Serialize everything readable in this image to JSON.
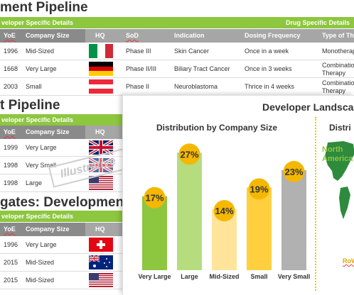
{
  "section1": {
    "title": "ment Pipeline",
    "bar_left": "veloper Specific Details",
    "bar_right": "Drug Specific Details",
    "headers": [
      "YoE",
      "Company Size",
      "HQ",
      "SoD",
      "Indication",
      "Dosing Frequency",
      "Type of Th"
    ],
    "rows": [
      {
        "yoe": "1996",
        "size": "Mid-Sized",
        "flag": "italy",
        "sod": "Phase III",
        "indication": "Skin Cancer",
        "dosing": "Once in a week",
        "type": "Monotherapy"
      },
      {
        "yoe": "1668",
        "size": "Very Large",
        "flag": "germany",
        "sod": "Phase II/III",
        "indication": "Biliary Tract Cancer",
        "dosing": "Once in 3 weeks",
        "type": "Combination Therapy"
      },
      {
        "yoe": "2003",
        "size": "Small",
        "flag": "austria",
        "sod": "Phase II",
        "indication": "Neuroblastoma",
        "dosing": "Thrice in 4 weeks",
        "type": "Combination Therapy"
      }
    ]
  },
  "section2": {
    "title": "t Pipeline",
    "bar_left": "veloper Specific Details",
    "headers": [
      "YoE",
      "Company Size",
      "HQ"
    ],
    "rows": [
      {
        "yoe": "1999",
        "size": "Very Large",
        "flag": "uk"
      },
      {
        "yoe": "1998",
        "size": "Very Small",
        "flag": "uk"
      },
      {
        "yoe": "1998",
        "size": "Large",
        "flag": "usa"
      }
    ]
  },
  "section3": {
    "title": "gates: Development P",
    "bar_left": "veloper Specific Details",
    "headers": [
      "YoE",
      "Company Size",
      "HQ"
    ],
    "rows": [
      {
        "yoe": "1996",
        "size": "Very Large",
        "flag": "switzerland"
      },
      {
        "yoe": "2015",
        "size": "Mid-Sized",
        "flag": "australia"
      },
      {
        "yoe": "2015",
        "size": "Mid-Sized",
        "flag": "usa"
      }
    ]
  },
  "stamp": "Illustrative",
  "panel": {
    "title": "Developer Landsca",
    "map_title": "Distri",
    "map_region": "North America",
    "map_footnote": "RoW"
  },
  "chart_data": {
    "type": "bar",
    "title": "Distribution by Company Size",
    "categories": [
      "Very Large",
      "Large",
      "Mid-Sized",
      "Small",
      "Very Small"
    ],
    "values": [
      17,
      27,
      14,
      19,
      23
    ],
    "value_labels": [
      "17%",
      "27%",
      "14%",
      "19%",
      "23%"
    ],
    "colors": [
      "#8dc63f",
      "#b5dd7e",
      "#ffe49a",
      "#ffcf3f",
      "#b1b1b1"
    ],
    "label_bubble_color": "#f5b800",
    "ylim": [
      0,
      30
    ],
    "xlabel": "",
    "ylabel": "",
    "grid": false
  }
}
